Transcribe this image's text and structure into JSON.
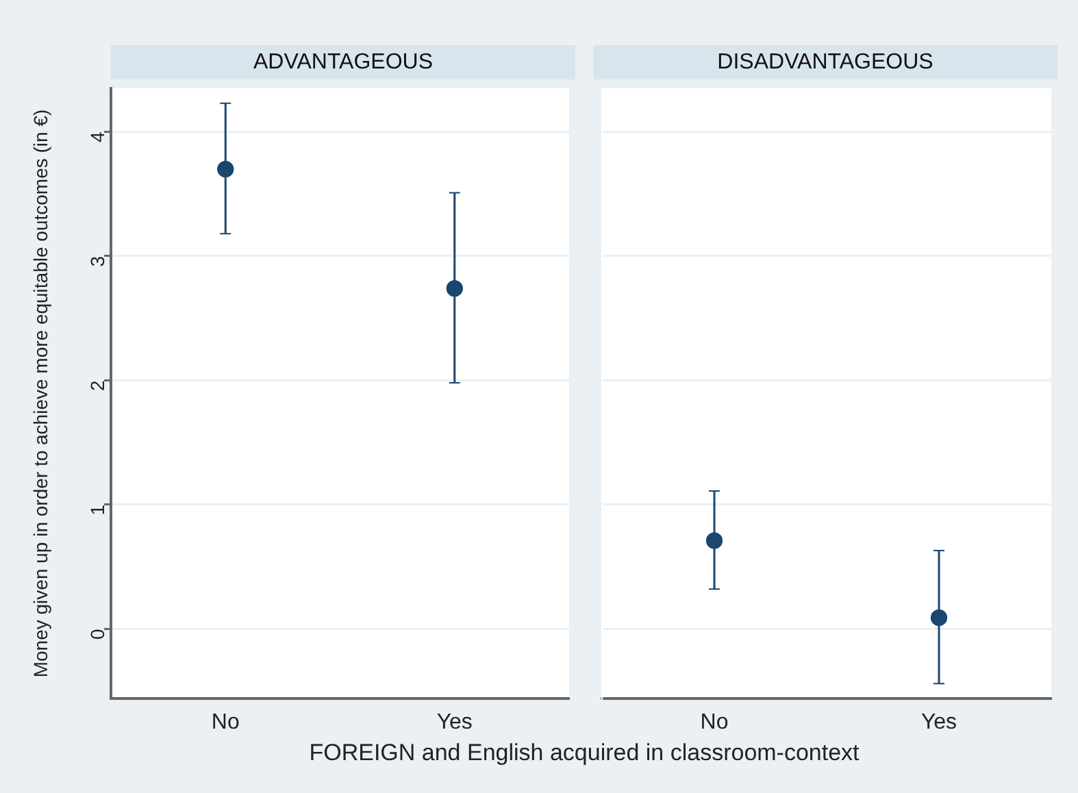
{
  "chart_data": [
    {
      "type": "scatter",
      "title": "ADVANTAGEOUS",
      "ylabel": "Money given up in order to achieve more equitable outcomes (in €)",
      "xlabel": "FOREIGN and English acquired in classroom-context",
      "categories": [
        "No",
        "Yes"
      ],
      "values": [
        3.7,
        2.74
      ],
      "errors": [
        [
          3.18,
          4.23
        ],
        [
          1.98,
          3.51
        ]
      ],
      "color": "#1a476f",
      "ylim": [
        -0.56,
        4.35
      ],
      "yticks": [
        0,
        1,
        2,
        3,
        4
      ],
      "grid": "y",
      "marker": "circle"
    },
    {
      "type": "scatter",
      "title": "DISADVANTAGEOUS",
      "categories": [
        "No",
        "Yes"
      ],
      "values": [
        0.71,
        0.09
      ],
      "errors": [
        [
          0.32,
          1.11
        ],
        [
          -0.44,
          0.63
        ]
      ],
      "color": "#1a476f",
      "ylim": [
        -0.56,
        4.35
      ],
      "yticks": [
        0,
        1,
        2,
        3,
        4
      ],
      "grid": "y",
      "marker": "circle",
      "tick_labels": "x"
    }
  ]
}
